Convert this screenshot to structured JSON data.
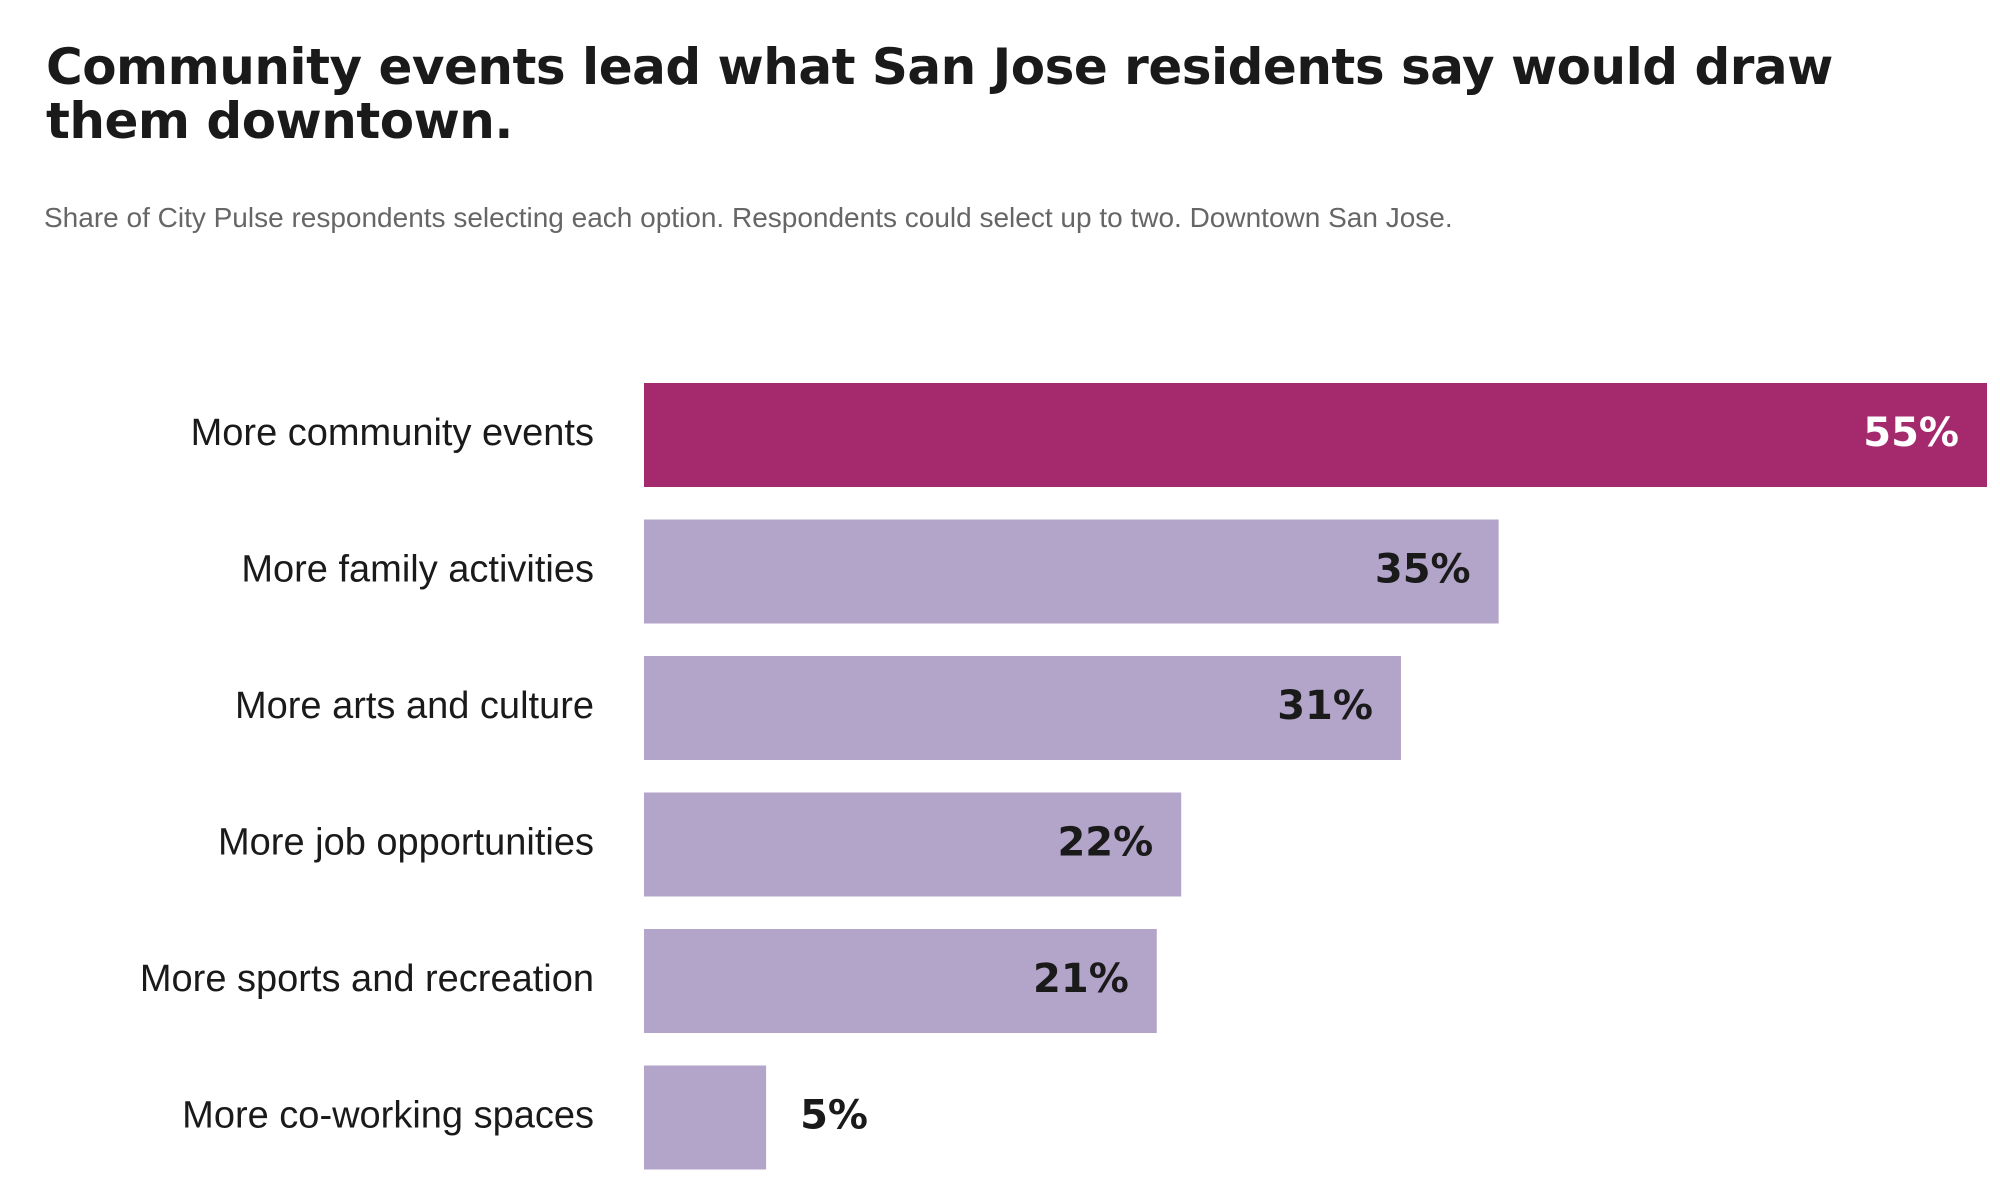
{
  "chart_data": {
    "type": "bar",
    "orientation": "horizontal",
    "title": "Community events lead what San Jose residents say would draw them downtown.",
    "subtitle": "Share of City Pulse respondents selecting each option. Respondents could select up to two. Downtown San Jose.",
    "categories": [
      "More community events",
      "More family activities",
      "More arts and culture",
      "More job opportunities",
      "More sports and recreation",
      "More co-working spaces"
    ],
    "values": [
      55,
      35,
      31,
      22,
      21,
      5
    ],
    "value_labels": [
      "55%",
      "35%",
      "31%",
      "22%",
      "21%",
      "5%"
    ],
    "colors": [
      "#a5296d",
      "#b3a4c9",
      "#b3a4c9",
      "#b3a4c9",
      "#b3a4c9",
      "#b3a4c9"
    ]
  }
}
